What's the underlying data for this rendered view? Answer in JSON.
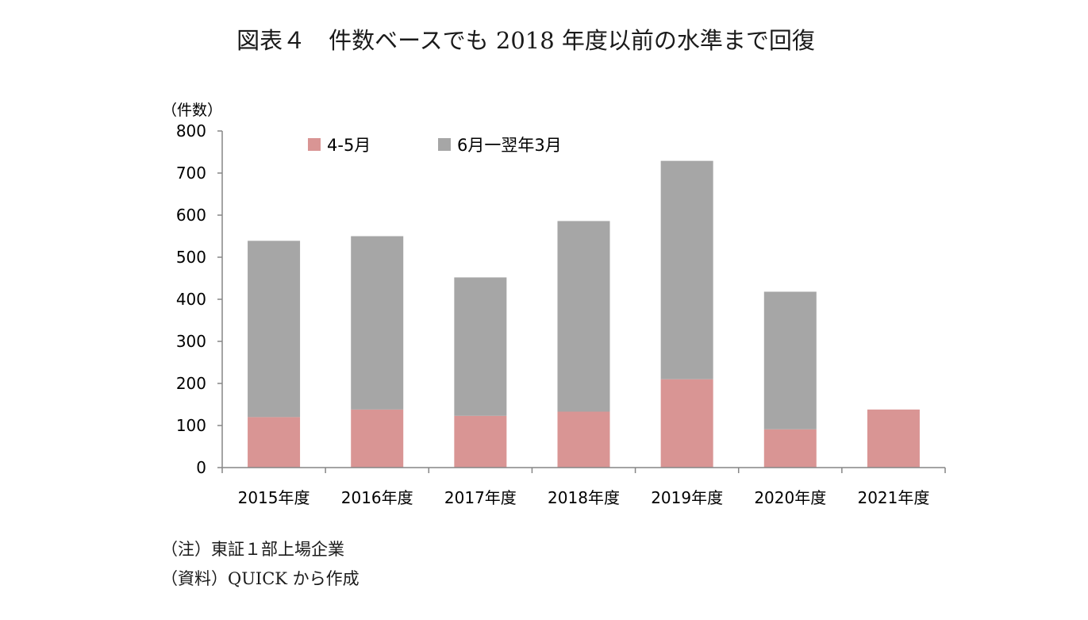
{
  "title": "図表４　件数ベースでも 2018 年度以前の水準まで回復",
  "notes": {
    "note1": "（注）東証１部上場企業",
    "note2": "（資料）QUICK から作成"
  },
  "chart_data": {
    "type": "bar",
    "stacked": true,
    "ylabel": "（件数）",
    "ylim": [
      0,
      800
    ],
    "yticks": [
      0,
      100,
      200,
      300,
      400,
      500,
      600,
      700,
      800
    ],
    "grid": false,
    "legend_position": "top",
    "categories": [
      "2015年度",
      "2016年度",
      "2017年度",
      "2018年度",
      "2019年度",
      "2020年度",
      "2021年度"
    ],
    "series": [
      {
        "name": "4-5月",
        "color": "#d99594",
        "values": [
          120,
          138,
          123,
          133,
          210,
          91,
          138
        ]
      },
      {
        "name": "6月一翌年3月",
        "color": "#a6a6a6",
        "values": [
          419,
          412,
          329,
          453,
          519,
          327,
          0
        ]
      }
    ]
  }
}
